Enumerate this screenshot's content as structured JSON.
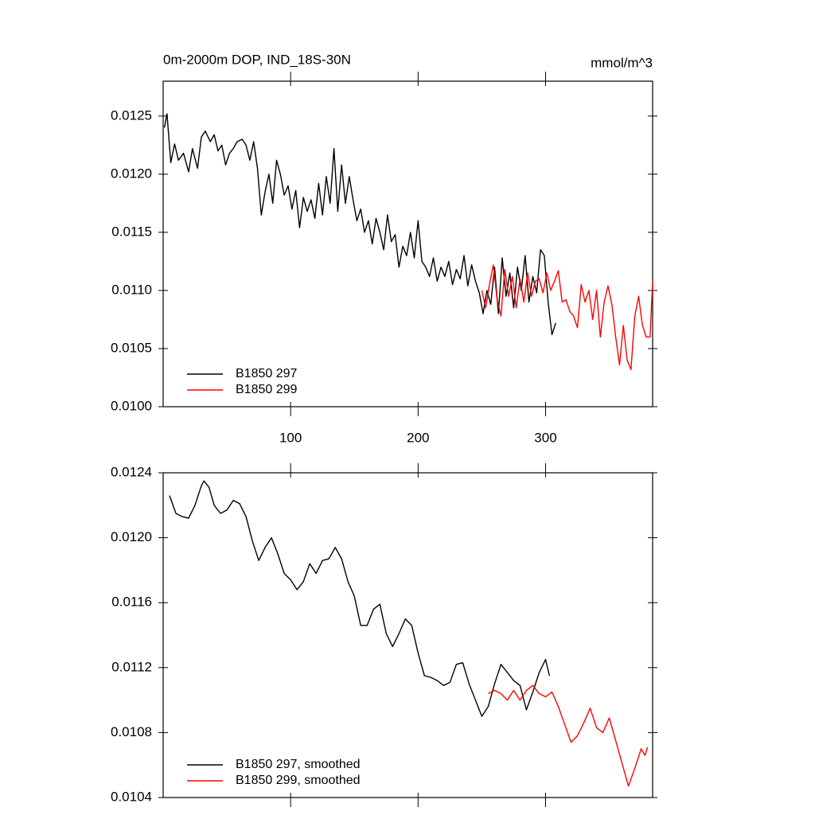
{
  "chart_data": [
    {
      "type": "line",
      "title": "0m-2000m DOP, IND_18S-30N",
      "units": "mmol/m^3",
      "xlim": [
        0,
        384
      ],
      "xticks": [
        100,
        200,
        300
      ],
      "x_tick_labels": true,
      "ylim": [
        0.01,
        0.0128
      ],
      "yticks": [
        {
          "value": 0.01,
          "label": "0.0100"
        },
        0.0105,
        {
          "value": 0.011,
          "label": "0.0110"
        },
        0.0115,
        {
          "value": 0.012,
          "label": "0.0120"
        },
        0.0125
      ],
      "legend": "lower left",
      "series": [
        {
          "name": "B1850 297",
          "color": "#000000",
          "x": [
            1,
            3,
            6,
            9,
            12,
            16,
            20,
            23,
            27,
            30,
            33,
            37,
            40,
            43,
            46,
            49,
            52,
            55,
            58,
            62,
            65,
            68,
            71,
            74,
            77,
            80,
            83,
            86,
            89,
            92,
            95,
            98,
            101,
            104,
            107,
            110,
            113,
            116,
            119,
            122,
            125,
            128,
            131,
            134,
            137,
            140,
            143,
            146,
            149,
            152,
            155,
            158,
            161,
            164,
            167,
            170,
            173,
            176,
            179,
            182,
            185,
            188,
            191,
            194,
            197,
            200,
            203,
            206,
            209,
            212,
            215,
            218,
            221,
            224,
            227,
            230,
            233,
            236,
            239,
            242,
            245,
            248,
            251,
            254,
            257,
            260,
            263,
            266,
            269,
            272,
            275,
            278,
            281,
            284,
            287,
            290,
            293,
            296,
            299,
            302,
            305,
            308
          ],
          "values": [
            0.0124,
            0.01252,
            0.0121,
            0.01226,
            0.01212,
            0.01218,
            0.01202,
            0.01222,
            0.01205,
            0.01232,
            0.01237,
            0.01228,
            0.01234,
            0.0122,
            0.01225,
            0.01208,
            0.01218,
            0.01222,
            0.01228,
            0.0123,
            0.01225,
            0.01212,
            0.01228,
            0.01205,
            0.01165,
            0.01185,
            0.012,
            0.01175,
            0.01212,
            0.012,
            0.01182,
            0.0119,
            0.0117,
            0.01186,
            0.01154,
            0.0118,
            0.01168,
            0.01178,
            0.01162,
            0.01192,
            0.01165,
            0.01198,
            0.01175,
            0.01222,
            0.01168,
            0.01208,
            0.01175,
            0.01198,
            0.01178,
            0.0116,
            0.0117,
            0.0115,
            0.0116,
            0.0114,
            0.01162,
            0.0115,
            0.01135,
            0.01165,
            0.01142,
            0.01148,
            0.0112,
            0.01138,
            0.0113,
            0.0115,
            0.01128,
            0.0116,
            0.01125,
            0.0112,
            0.01112,
            0.01128,
            0.01108,
            0.0112,
            0.01112,
            0.01125,
            0.01105,
            0.01118,
            0.0111,
            0.0113,
            0.01104,
            0.01122,
            0.01108,
            0.01098,
            0.0108,
            0.011,
            0.01088,
            0.0112,
            0.0108,
            0.01128,
            0.01095,
            0.01115,
            0.01085,
            0.0112,
            0.011,
            0.0113,
            0.0109,
            0.01112,
            0.01098,
            0.01135,
            0.0113,
            0.0109,
            0.01062,
            0.01072
          ]
        },
        {
          "name": "B1850 299",
          "color": "#ff0000",
          "x": [
            250,
            253,
            256,
            259,
            262,
            265,
            268,
            271,
            274,
            277,
            280,
            283,
            286,
            289,
            292,
            295,
            298,
            301,
            304,
            307,
            310,
            313,
            316,
            319,
            322,
            325,
            328,
            331,
            334,
            337,
            340,
            343,
            346,
            349,
            352,
            355,
            358,
            361,
            364,
            367,
            370,
            373,
            376,
            379,
            382,
            384
          ],
          "values": [
            0.011,
            0.01085,
            0.01105,
            0.01122,
            0.01092,
            0.01078,
            0.01118,
            0.01095,
            0.01112,
            0.01085,
            0.0111,
            0.0109,
            0.01115,
            0.01095,
            0.01108,
            0.0111,
            0.01098,
            0.01115,
            0.011,
            0.01108,
            0.01117,
            0.0109,
            0.01092,
            0.01082,
            0.01078,
            0.01068,
            0.01105,
            0.0109,
            0.011,
            0.01075,
            0.011,
            0.0106,
            0.0109,
            0.01104,
            0.01088,
            0.0106,
            0.01036,
            0.0107,
            0.0104,
            0.01032,
            0.01078,
            0.01095,
            0.0107,
            0.0106,
            0.0106,
            0.01108
          ]
        }
      ]
    },
    {
      "type": "line",
      "xlim": [
        0,
        384
      ],
      "xticks": [
        100,
        200,
        300
      ],
      "x_tick_labels": false,
      "ylim": [
        0.0104,
        0.0124
      ],
      "yticks": [
        0.0104,
        0.0108,
        0.0112,
        0.0116,
        {
          "value": 0.012,
          "label": "0.0120"
        },
        0.0124
      ],
      "legend": "lower left",
      "series": [
        {
          "name": "B1850 297, smoothed",
          "color": "#000000",
          "x": [
            5,
            10,
            15,
            20,
            25,
            30,
            32,
            36,
            40,
            45,
            50,
            55,
            60,
            65,
            70,
            75,
            80,
            85,
            90,
            95,
            100,
            105,
            110,
            115,
            120,
            125,
            130,
            135,
            140,
            145,
            150,
            155,
            160,
            165,
            170,
            175,
            180,
            185,
            190,
            195,
            200,
            205,
            210,
            215,
            220,
            225,
            230,
            235,
            240,
            245,
            250,
            255,
            260,
            265,
            270,
            275,
            280,
            285,
            290,
            295,
            300,
            303
          ],
          "values": [
            0.01226,
            0.01215,
            0.01213,
            0.01212,
            0.0122,
            0.01232,
            0.01235,
            0.01231,
            0.0122,
            0.01215,
            0.01217,
            0.01223,
            0.01221,
            0.01213,
            0.01198,
            0.01186,
            0.01194,
            0.012,
            0.0119,
            0.01178,
            0.01174,
            0.01168,
            0.01173,
            0.01184,
            0.01178,
            0.01186,
            0.01187,
            0.01194,
            0.01187,
            0.01173,
            0.01164,
            0.01146,
            0.01146,
            0.01156,
            0.01159,
            0.01141,
            0.01133,
            0.01141,
            0.0115,
            0.01146,
            0.01129,
            0.01115,
            0.01114,
            0.01112,
            0.01109,
            0.01111,
            0.01122,
            0.01123,
            0.0111,
            0.011,
            0.0109,
            0.01096,
            0.0111,
            0.01122,
            0.01117,
            0.01112,
            0.01109,
            0.01094,
            0.01105,
            0.01117,
            0.01125,
            0.01115
          ]
        },
        {
          "name": "B1850 299, smoothed",
          "color": "#ff0000",
          "x": [
            255,
            260,
            265,
            270,
            275,
            280,
            285,
            290,
            295,
            300,
            305,
            310,
            315,
            320,
            325,
            330,
            335,
            340,
            345,
            350,
            355,
            360,
            365,
            370,
            375,
            378,
            380
          ],
          "values": [
            0.01104,
            0.01106,
            0.01104,
            0.011,
            0.01106,
            0.011,
            0.01106,
            0.01109,
            0.01104,
            0.01102,
            0.01105,
            0.01096,
            0.01085,
            0.01074,
            0.01078,
            0.01086,
            0.01095,
            0.01083,
            0.0108,
            0.01089,
            0.01075,
            0.01061,
            0.01047,
            0.01058,
            0.0107,
            0.01066,
            0.01071
          ]
        }
      ]
    }
  ]
}
